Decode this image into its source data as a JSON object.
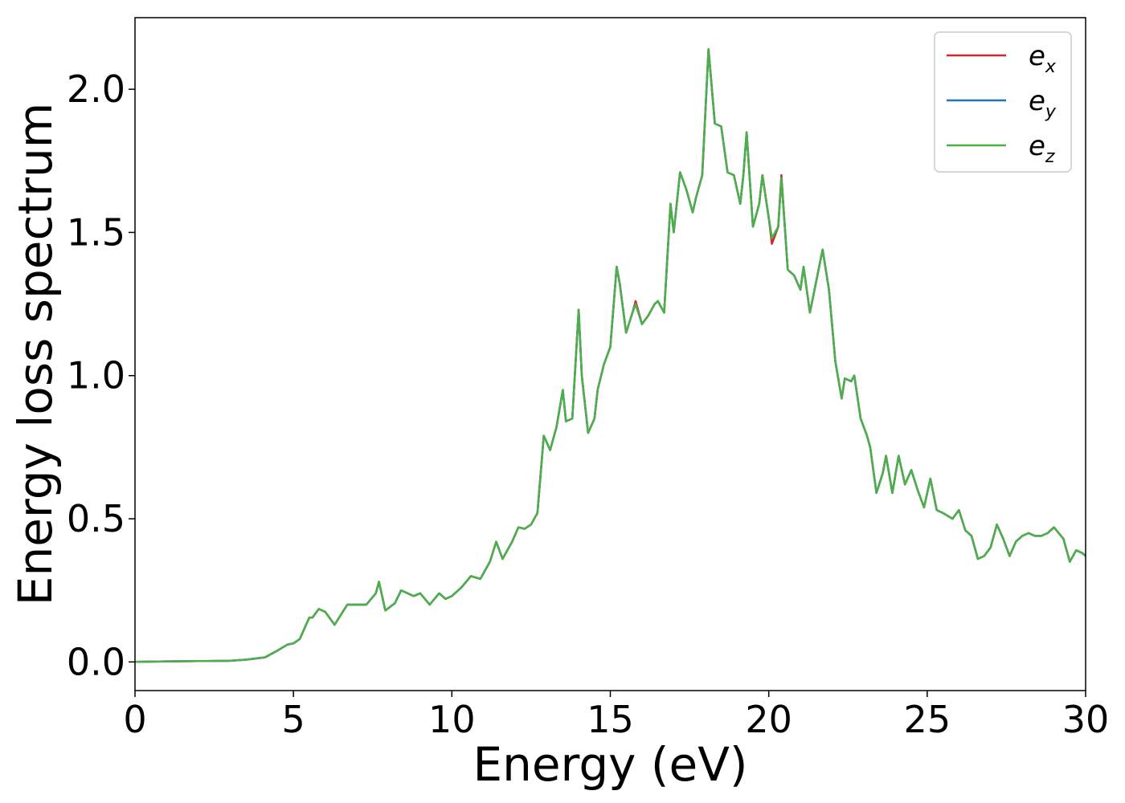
{
  "chart_data": {
    "type": "line",
    "xlabel": "Energy (eV)",
    "ylabel": "Energy loss spectrum",
    "xlim": [
      0,
      30
    ],
    "ylim": [
      -0.1,
      2.25
    ],
    "xticks": [
      0,
      5,
      10,
      15,
      20,
      25,
      30
    ],
    "xtick_labels": [
      "0",
      "5",
      "10",
      "15",
      "20",
      "25",
      "30"
    ],
    "yticks": [
      0.0,
      0.5,
      1.0,
      1.5,
      2.0
    ],
    "ytick_labels": [
      "0.0",
      "0.5",
      "1.0",
      "1.5",
      "2.0"
    ],
    "grid": false,
    "legend_position": "top-right",
    "series": [
      {
        "name": "e_x",
        "label_main": "e",
        "label_sub": "x",
        "color": "#d62728",
        "x": [
          0,
          1,
          2,
          3,
          3.5,
          3.8,
          4.1,
          4.5,
          4.8,
          5.0,
          5.2,
          5.4,
          5.5,
          5.6,
          5.8,
          6.0,
          6.3,
          6.7,
          7.0,
          7.3,
          7.6,
          7.7,
          7.9,
          8.2,
          8.4,
          8.6,
          8.8,
          9.0,
          9.3,
          9.6,
          9.8,
          10.0,
          10.3,
          10.6,
          10.9,
          11.2,
          11.4,
          11.6,
          11.9,
          12.1,
          12.3,
          12.5,
          12.7,
          12.9,
          13.1,
          13.3,
          13.5,
          13.6,
          13.8,
          14.0,
          14.1,
          14.3,
          14.5,
          14.6,
          14.8,
          15.0,
          15.2,
          15.3,
          15.5,
          15.7,
          15.8,
          16.0,
          16.2,
          16.4,
          16.5,
          16.7,
          16.9,
          17.0,
          17.2,
          17.4,
          17.6,
          17.7,
          17.9,
          18.1,
          18.3,
          18.5,
          18.7,
          18.9,
          19.1,
          19.2,
          19.3,
          19.5,
          19.7,
          19.8,
          20.0,
          20.1,
          20.3,
          20.4,
          20.6,
          20.8,
          21.0,
          21.1,
          21.3,
          21.5,
          21.7,
          21.9,
          22.1,
          22.3,
          22.4,
          22.6,
          22.7,
          22.9,
          23.1,
          23.2,
          23.4,
          23.6,
          23.7,
          23.9,
          24.1,
          24.3,
          24.5,
          24.7,
          24.9,
          25.1,
          25.3,
          25.5,
          25.8,
          26.0,
          26.2,
          26.4,
          26.6,
          26.8,
          27.0,
          27.2,
          27.4,
          27.6,
          27.8,
          28.0,
          28.2,
          28.4,
          28.6,
          28.8,
          29.0,
          29.3,
          29.5,
          29.7,
          29.9,
          30.0
        ],
        "y": [
          0.0,
          0.002,
          0.003,
          0.004,
          0.008,
          0.012,
          0.016,
          0.04,
          0.06,
          0.065,
          0.08,
          0.13,
          0.155,
          0.155,
          0.185,
          0.175,
          0.13,
          0.2,
          0.2,
          0.2,
          0.24,
          0.28,
          0.18,
          0.205,
          0.25,
          0.24,
          0.23,
          0.24,
          0.2,
          0.24,
          0.22,
          0.23,
          0.26,
          0.3,
          0.29,
          0.35,
          0.42,
          0.36,
          0.42,
          0.47,
          0.465,
          0.48,
          0.52,
          0.79,
          0.74,
          0.82,
          0.95,
          0.84,
          0.85,
          1.23,
          1.0,
          0.8,
          0.85,
          0.95,
          1.04,
          1.1,
          1.38,
          1.32,
          1.15,
          1.22,
          1.26,
          1.18,
          1.21,
          1.25,
          1.26,
          1.22,
          1.6,
          1.5,
          1.71,
          1.65,
          1.57,
          1.62,
          1.7,
          2.14,
          1.88,
          1.87,
          1.71,
          1.7,
          1.6,
          1.7,
          1.85,
          1.52,
          1.6,
          1.7,
          1.55,
          1.46,
          1.52,
          1.7,
          1.37,
          1.35,
          1.3,
          1.38,
          1.22,
          1.33,
          1.44,
          1.3,
          1.05,
          0.92,
          0.99,
          0.98,
          1.0,
          0.85,
          0.79,
          0.75,
          0.59,
          0.66,
          0.72,
          0.59,
          0.72,
          0.62,
          0.67,
          0.6,
          0.54,
          0.64,
          0.53,
          0.52,
          0.5,
          0.53,
          0.46,
          0.44,
          0.36,
          0.37,
          0.4,
          0.48,
          0.43,
          0.37,
          0.42,
          0.44,
          0.45,
          0.44,
          0.44,
          0.45,
          0.47,
          0.43,
          0.35,
          0.39,
          0.38,
          0.37
        ]
      },
      {
        "name": "e_y",
        "label_main": "e",
        "label_sub": "y",
        "color": "#1f77b4",
        "x": [
          0,
          1,
          2,
          3,
          3.5,
          3.8,
          4.1,
          4.5,
          4.8,
          5.0,
          5.2,
          5.4,
          5.5,
          5.6,
          5.8,
          6.0,
          6.3,
          6.7,
          7.0,
          7.3,
          7.6,
          7.7,
          7.9,
          8.2,
          8.4,
          8.6,
          8.8,
          9.0,
          9.3,
          9.6,
          9.8,
          10.0,
          10.3,
          10.6,
          10.9,
          11.2,
          11.4,
          11.6,
          11.9,
          12.1,
          12.3,
          12.5,
          12.7,
          12.9,
          13.1,
          13.3,
          13.5,
          13.6,
          13.8,
          14.0,
          14.1,
          14.3,
          14.5,
          14.6,
          14.8,
          15.0,
          15.2,
          15.3,
          15.5,
          15.7,
          15.8,
          16.0,
          16.2,
          16.4,
          16.5,
          16.7,
          16.9,
          17.0,
          17.2,
          17.4,
          17.6,
          17.7,
          17.9,
          18.1,
          18.3,
          18.5,
          18.7,
          18.9,
          19.1,
          19.2,
          19.3,
          19.5,
          19.7,
          19.8,
          20.0,
          20.1,
          20.3,
          20.4,
          20.6,
          20.8,
          21.0,
          21.1,
          21.3,
          21.5,
          21.7,
          21.9,
          22.1,
          22.3,
          22.4,
          22.6,
          22.7,
          22.9,
          23.1,
          23.2,
          23.4,
          23.6,
          23.7,
          23.9,
          24.1,
          24.3,
          24.5,
          24.7,
          24.9,
          25.1,
          25.3,
          25.5,
          25.8,
          26.0,
          26.2,
          26.4,
          26.6,
          26.8,
          27.0,
          27.2,
          27.4,
          27.6,
          27.8,
          28.0,
          28.2,
          28.4,
          28.6,
          28.8,
          29.0,
          29.3,
          29.5,
          29.7,
          29.9,
          30.0
        ],
        "y": [
          0.0,
          0.002,
          0.003,
          0.004,
          0.008,
          0.012,
          0.016,
          0.04,
          0.06,
          0.065,
          0.08,
          0.13,
          0.155,
          0.155,
          0.185,
          0.175,
          0.13,
          0.2,
          0.2,
          0.2,
          0.24,
          0.28,
          0.18,
          0.205,
          0.25,
          0.24,
          0.23,
          0.24,
          0.2,
          0.24,
          0.22,
          0.23,
          0.26,
          0.3,
          0.29,
          0.35,
          0.42,
          0.36,
          0.42,
          0.47,
          0.465,
          0.48,
          0.52,
          0.79,
          0.74,
          0.82,
          0.95,
          0.84,
          0.85,
          1.23,
          1.0,
          0.8,
          0.85,
          0.95,
          1.04,
          1.1,
          1.38,
          1.32,
          1.15,
          1.22,
          1.25,
          1.18,
          1.21,
          1.25,
          1.26,
          1.22,
          1.6,
          1.5,
          1.71,
          1.65,
          1.57,
          1.62,
          1.7,
          2.14,
          1.88,
          1.87,
          1.71,
          1.7,
          1.6,
          1.7,
          1.85,
          1.52,
          1.6,
          1.7,
          1.55,
          1.48,
          1.52,
          1.69,
          1.37,
          1.35,
          1.3,
          1.38,
          1.22,
          1.33,
          1.44,
          1.3,
          1.05,
          0.92,
          0.99,
          0.98,
          1.0,
          0.85,
          0.79,
          0.75,
          0.59,
          0.66,
          0.72,
          0.59,
          0.72,
          0.62,
          0.67,
          0.6,
          0.54,
          0.64,
          0.53,
          0.52,
          0.5,
          0.53,
          0.46,
          0.44,
          0.36,
          0.37,
          0.4,
          0.48,
          0.43,
          0.37,
          0.42,
          0.44,
          0.45,
          0.44,
          0.44,
          0.45,
          0.47,
          0.43,
          0.35,
          0.39,
          0.38,
          0.37
        ]
      },
      {
        "name": "e_z",
        "label_main": "e",
        "label_sub": "z",
        "color": "#4daf4a",
        "x": [
          0,
          1,
          2,
          3,
          3.5,
          3.8,
          4.1,
          4.5,
          4.8,
          5.0,
          5.2,
          5.4,
          5.5,
          5.6,
          5.8,
          6.0,
          6.3,
          6.7,
          7.0,
          7.3,
          7.6,
          7.7,
          7.9,
          8.2,
          8.4,
          8.6,
          8.8,
          9.0,
          9.3,
          9.6,
          9.8,
          10.0,
          10.3,
          10.6,
          10.9,
          11.2,
          11.4,
          11.6,
          11.9,
          12.1,
          12.3,
          12.5,
          12.7,
          12.9,
          13.1,
          13.3,
          13.5,
          13.6,
          13.8,
          14.0,
          14.1,
          14.3,
          14.5,
          14.6,
          14.8,
          15.0,
          15.2,
          15.3,
          15.5,
          15.7,
          15.8,
          16.0,
          16.2,
          16.4,
          16.5,
          16.7,
          16.9,
          17.0,
          17.2,
          17.4,
          17.6,
          17.7,
          17.9,
          18.1,
          18.3,
          18.5,
          18.7,
          18.9,
          19.1,
          19.2,
          19.3,
          19.5,
          19.7,
          19.8,
          20.0,
          20.1,
          20.3,
          20.4,
          20.6,
          20.8,
          21.0,
          21.1,
          21.3,
          21.5,
          21.7,
          21.9,
          22.1,
          22.3,
          22.4,
          22.6,
          22.7,
          22.9,
          23.1,
          23.2,
          23.4,
          23.6,
          23.7,
          23.9,
          24.1,
          24.3,
          24.5,
          24.7,
          24.9,
          25.1,
          25.3,
          25.5,
          25.8,
          26.0,
          26.2,
          26.4,
          26.6,
          26.8,
          27.0,
          27.2,
          27.4,
          27.6,
          27.8,
          28.0,
          28.2,
          28.4,
          28.6,
          28.8,
          29.0,
          29.3,
          29.5,
          29.7,
          29.9,
          30.0
        ],
        "y": [
          0.0,
          0.002,
          0.003,
          0.004,
          0.008,
          0.012,
          0.016,
          0.04,
          0.06,
          0.065,
          0.08,
          0.13,
          0.155,
          0.155,
          0.185,
          0.175,
          0.13,
          0.2,
          0.2,
          0.2,
          0.24,
          0.28,
          0.18,
          0.205,
          0.25,
          0.24,
          0.23,
          0.24,
          0.2,
          0.24,
          0.22,
          0.23,
          0.26,
          0.3,
          0.29,
          0.35,
          0.42,
          0.36,
          0.42,
          0.47,
          0.465,
          0.48,
          0.52,
          0.79,
          0.74,
          0.82,
          0.95,
          0.84,
          0.85,
          1.23,
          1.0,
          0.8,
          0.85,
          0.95,
          1.04,
          1.1,
          1.38,
          1.32,
          1.15,
          1.22,
          1.25,
          1.18,
          1.21,
          1.25,
          1.26,
          1.22,
          1.6,
          1.5,
          1.71,
          1.65,
          1.57,
          1.62,
          1.7,
          2.14,
          1.88,
          1.87,
          1.71,
          1.7,
          1.6,
          1.7,
          1.85,
          1.52,
          1.6,
          1.7,
          1.55,
          1.48,
          1.52,
          1.69,
          1.37,
          1.35,
          1.3,
          1.38,
          1.22,
          1.33,
          1.44,
          1.3,
          1.05,
          0.92,
          0.99,
          0.98,
          1.0,
          0.85,
          0.79,
          0.75,
          0.59,
          0.66,
          0.72,
          0.59,
          0.72,
          0.62,
          0.67,
          0.6,
          0.54,
          0.64,
          0.53,
          0.52,
          0.5,
          0.53,
          0.46,
          0.44,
          0.36,
          0.37,
          0.4,
          0.48,
          0.43,
          0.37,
          0.42,
          0.44,
          0.45,
          0.44,
          0.44,
          0.45,
          0.47,
          0.43,
          0.35,
          0.39,
          0.38,
          0.37
        ]
      }
    ]
  }
}
